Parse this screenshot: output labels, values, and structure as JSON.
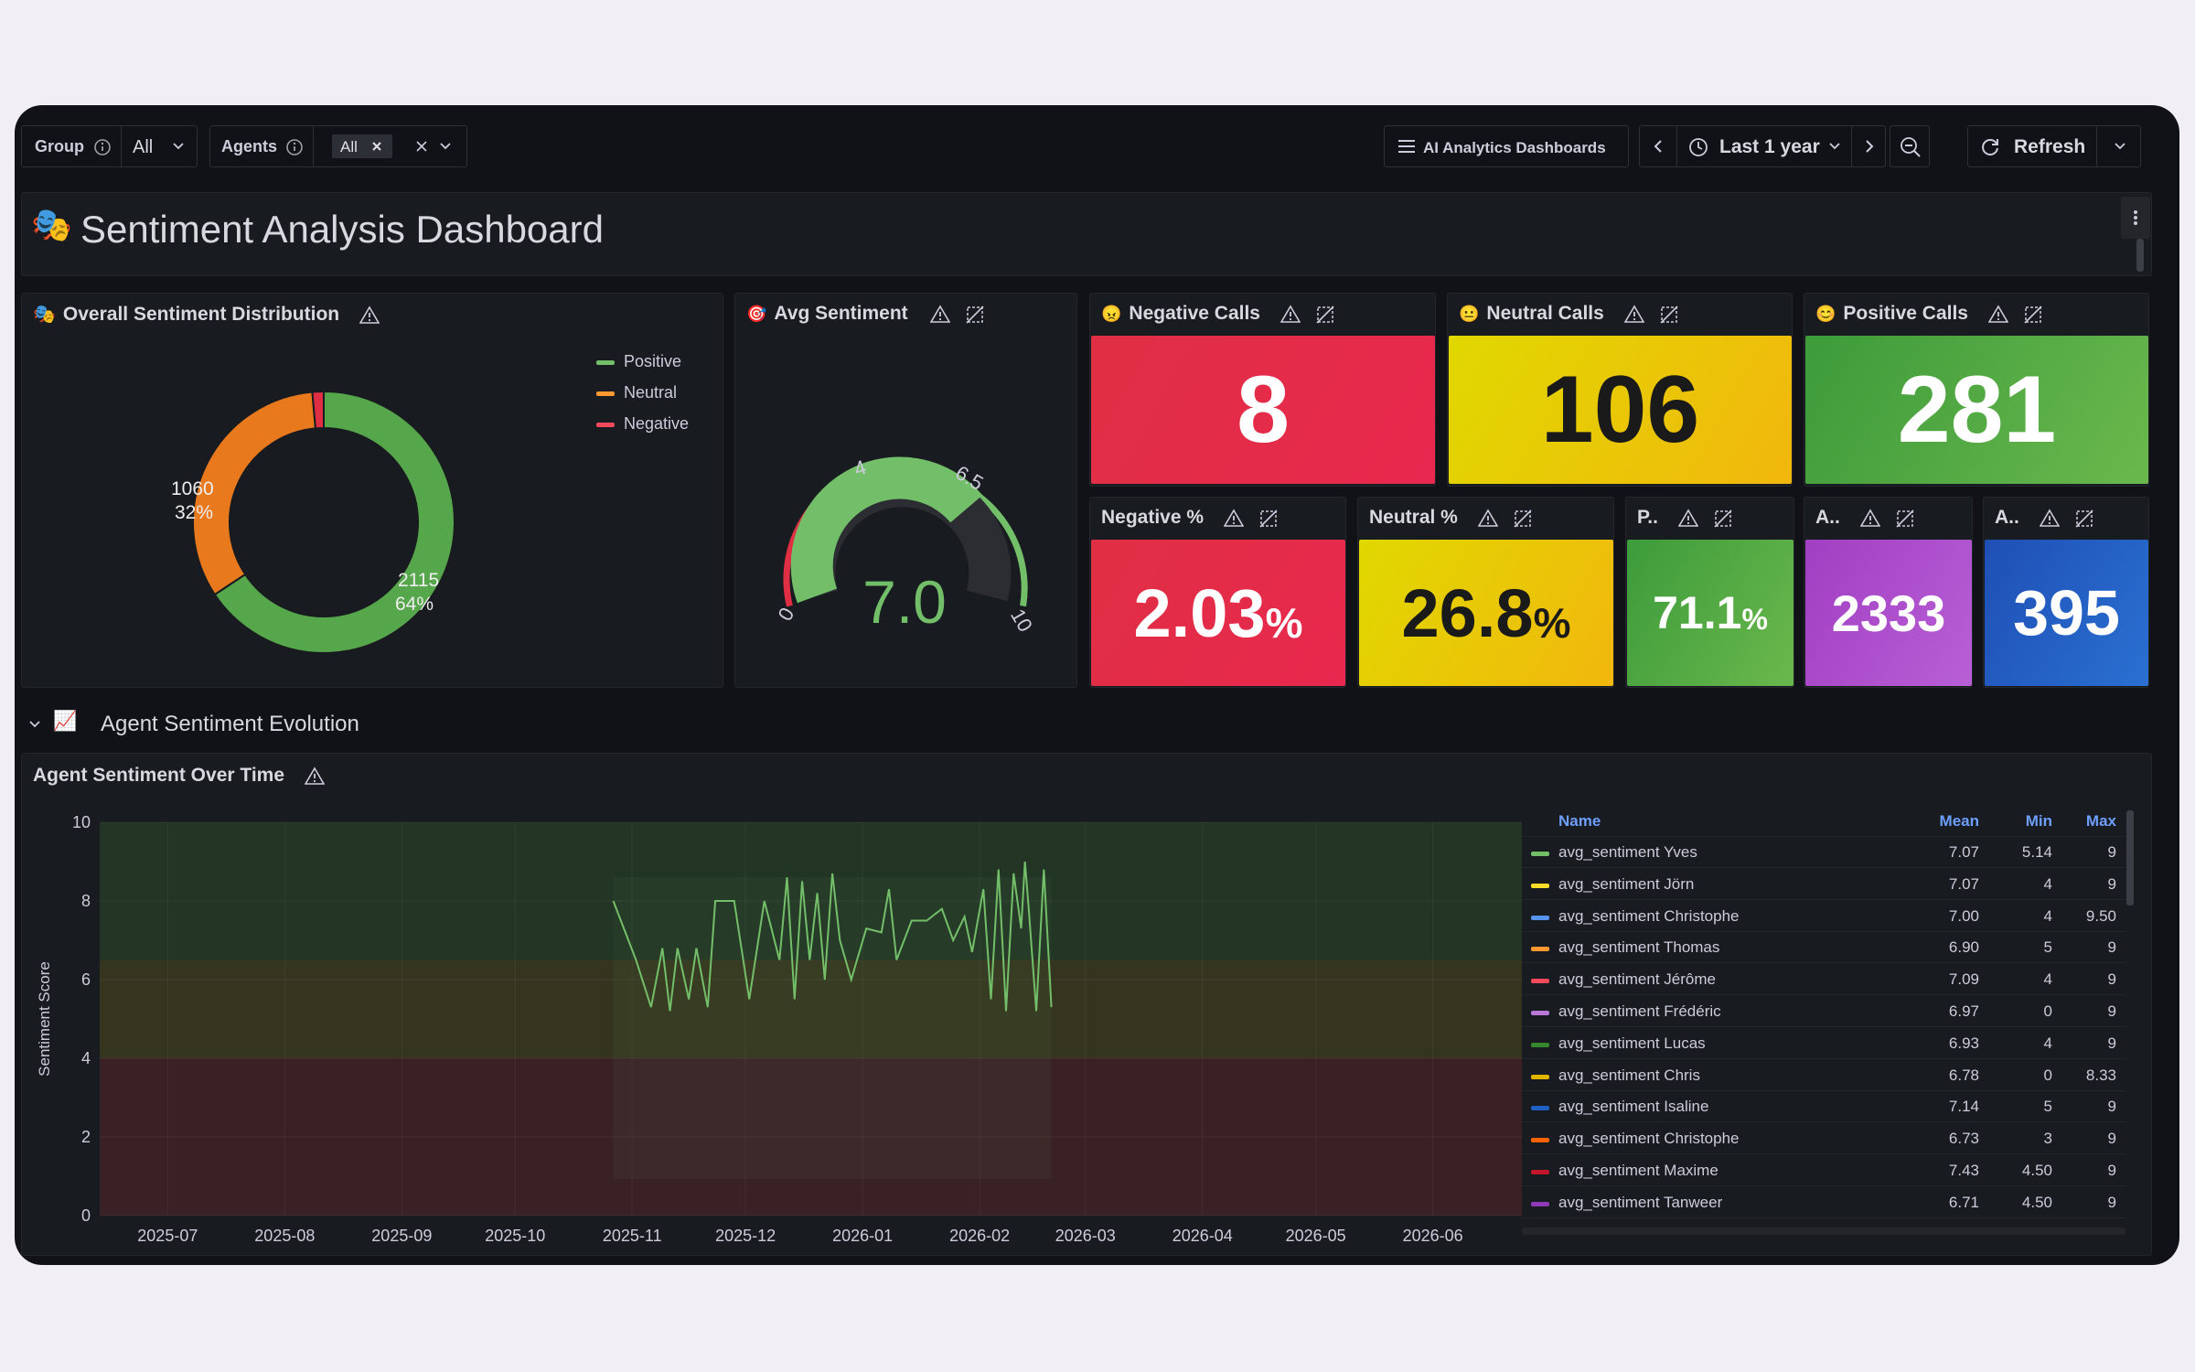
{
  "toolbar": {
    "group_label": "Group",
    "group_value": "All",
    "agents_label": "Agents",
    "agents_chip": "All",
    "dashboards_button": "AI Analytics Dashboards",
    "time_range": "Last 1 year",
    "refresh_label": "Refresh"
  },
  "header": {
    "title": "Sentiment Analysis Dashboard"
  },
  "panels": {
    "distribution": {
      "title": "Overall Sentiment Distribution",
      "legend": [
        "Positive",
        "Neutral",
        "Negative"
      ],
      "neutral_value": "1060",
      "neutral_pct": "32%",
      "positive_value": "2115",
      "positive_pct": "64%"
    },
    "avg": {
      "title": "Avg Sentiment",
      "value": "7.0",
      "t0": "0",
      "t4": "4",
      "t65": "6.5",
      "t10": "10"
    },
    "negative_calls": {
      "title": "Negative Calls",
      "value": "8"
    },
    "neutral_calls": {
      "title": "Neutral Calls",
      "value": "106"
    },
    "positive_calls": {
      "title": "Positive Calls",
      "value": "281"
    },
    "negative_pct": {
      "title": "Negative %",
      "value": "2.03",
      "unit": "%"
    },
    "neutral_pct": {
      "title": "Neutral %",
      "value": "26.8",
      "unit": "%"
    },
    "positive_pct": {
      "title": "P..",
      "value": "71.1",
      "unit": "%"
    },
    "a1": {
      "title": "A..",
      "value": "2333"
    },
    "a2": {
      "title": "A..",
      "value": "395"
    }
  },
  "row": {
    "title": "Agent Sentiment Evolution"
  },
  "timeseries": {
    "title": "Agent Sentiment Over Time",
    "ylabel": "Sentiment Score",
    "legend_headers": {
      "name": "Name",
      "mean": "Mean",
      "min": "Min",
      "max": "Max"
    },
    "legend": [
      {
        "name": "avg_sentiment Yves",
        "mean": "7.07",
        "min": "5.14",
        "max": "9",
        "color": "#73bf69"
      },
      {
        "name": "avg_sentiment Jörn",
        "mean": "7.07",
        "min": "4",
        "max": "9",
        "color": "#fade2a"
      },
      {
        "name": "avg_sentiment Christophe",
        "mean": "7.00",
        "min": "4",
        "max": "9.50",
        "color": "#5794f2"
      },
      {
        "name": "avg_sentiment Thomas",
        "mean": "6.90",
        "min": "5",
        "max": "9",
        "color": "#ff9830"
      },
      {
        "name": "avg_sentiment Jérôme",
        "mean": "7.09",
        "min": "4",
        "max": "9",
        "color": "#f2495c"
      },
      {
        "name": "avg_sentiment Frédéric",
        "mean": "6.97",
        "min": "0",
        "max": "9",
        "color": "#b877d9"
      },
      {
        "name": "avg_sentiment Lucas",
        "mean": "6.93",
        "min": "4",
        "max": "9",
        "color": "#37872d"
      },
      {
        "name": "avg_sentiment Chris",
        "mean": "6.78",
        "min": "0",
        "max": "8.33",
        "color": "#e0b400"
      },
      {
        "name": "avg_sentiment Isaline",
        "mean": "7.14",
        "min": "5",
        "max": "9",
        "color": "#1f60c4"
      },
      {
        "name": "avg_sentiment Christophe",
        "mean": "6.73",
        "min": "3",
        "max": "9",
        "color": "#fa6400"
      },
      {
        "name": "avg_sentiment Maxime",
        "mean": "7.43",
        "min": "4.50",
        "max": "9",
        "color": "#c4162a"
      },
      {
        "name": "avg_sentiment Tanweer",
        "mean": "6.71",
        "min": "4.50",
        "max": "9",
        "color": "#8f3bb8"
      }
    ]
  },
  "chart_data": [
    {
      "type": "pie",
      "title": "Overall Sentiment Distribution",
      "categories": [
        "Positive",
        "Neutral",
        "Negative"
      ],
      "values": [
        2115,
        1060,
        45
      ],
      "colors": [
        "#56a64b",
        "#e8791c",
        "#e02f44"
      ]
    },
    {
      "type": "line",
      "title": "Agent Sentiment Over Time",
      "ylabel": "Sentiment Score",
      "ylim": [
        0,
        10
      ],
      "yticks": [
        "0",
        "2",
        "4",
        "6",
        "8",
        "10"
      ],
      "xticks": [
        "2025-07",
        "2025-08",
        "2025-09",
        "2025-10",
        "2025-11",
        "2025-12",
        "2026-01",
        "2026-02",
        "2026-03",
        "2026-04",
        "2026-05",
        "2026-06"
      ],
      "series": [
        {
          "name": "avg_sentiment Yves",
          "x": [
            "2025-10-27",
            "2025-11-02",
            "2025-11-06",
            "2025-11-09",
            "2025-11-11",
            "2025-11-13",
            "2025-11-16",
            "2025-11-18",
            "2025-11-21",
            "2025-11-23",
            "2025-11-26",
            "2025-11-28",
            "2025-12-02",
            "2025-12-06",
            "2025-12-10",
            "2025-12-12",
            "2025-12-14",
            "2025-12-16",
            "2025-12-18",
            "2025-12-20",
            "2025-12-22",
            "2025-12-24",
            "2025-12-26",
            "2025-12-29",
            "2026-01-02",
            "2026-01-06",
            "2026-01-08",
            "2026-01-10",
            "2026-01-14",
            "2026-01-18",
            "2026-01-22",
            "2026-01-25",
            "2026-01-28",
            "2026-01-30",
            "2026-02-02",
            "2026-02-04",
            "2026-02-06",
            "2026-02-08",
            "2026-02-10",
            "2026-02-12",
            "2026-02-13",
            "2026-02-14",
            "2026-02-16",
            "2026-02-18",
            "2026-02-20"
          ],
          "values": [
            8,
            6.5,
            5.3,
            6.8,
            5.2,
            6.8,
            5.5,
            6.8,
            5.3,
            8,
            8,
            8,
            5.5,
            8,
            6.5,
            8.6,
            5.5,
            8.5,
            6.5,
            8.2,
            6,
            8.7,
            7,
            6,
            7.3,
            7.2,
            8.3,
            6.5,
            7.5,
            7.5,
            7.8,
            7,
            7.6,
            6.7,
            8.3,
            5.5,
            8.8,
            5.2,
            8.7,
            7.3,
            9,
            7.8,
            5.2,
            8.8,
            5.3
          ]
        }
      ]
    }
  ]
}
